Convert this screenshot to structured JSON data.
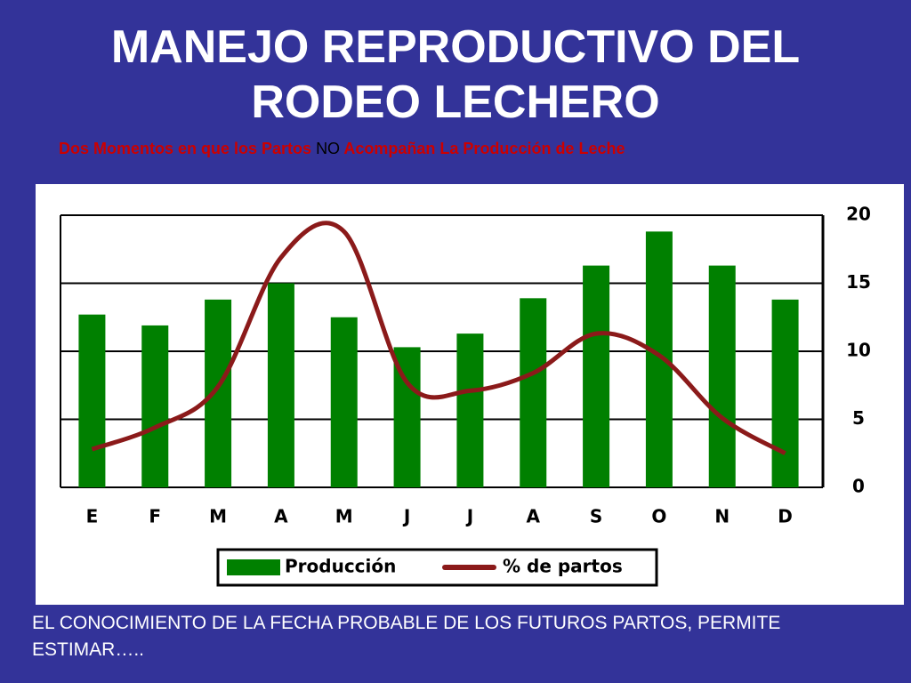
{
  "title": "MANEJO REPRODUCTIVO DEL RODEO LECHERO",
  "subtitle": {
    "part1": "Dos Momentos en que los Partos",
    "part2": "NO",
    "part3": "Acompañan La Producción de Leche"
  },
  "footer": "EL CONOCIMIENTO DE LA FECHA  PROBABLE DE LOS FUTUROS PARTOS, PERMITE ESTIMAR…..",
  "chart_data": {
    "type": "bar_line",
    "categories": [
      "E",
      "F",
      "M",
      "A",
      "M",
      "J",
      "J",
      "A",
      "S",
      "O",
      "N",
      "D"
    ],
    "series": [
      {
        "name": "Producción",
        "type": "bar",
        "color": "#008000",
        "values": [
          12.7,
          11.9,
          13.8,
          15.0,
          12.5,
          10.3,
          11.3,
          13.9,
          16.3,
          18.8,
          16.3,
          13.8
        ]
      },
      {
        "name": "% de partos",
        "type": "line",
        "color": "#8b1a1a",
        "values": [
          2.8,
          4.4,
          7.4,
          16.9,
          18.8,
          7.7,
          7.1,
          8.4,
          11.3,
          9.7,
          5.1,
          2.5
        ]
      }
    ],
    "ylim": [
      0,
      20
    ],
    "yticks": [
      0,
      5,
      10,
      15,
      20
    ],
    "grid": true,
    "y_axis_side": "right",
    "legend": "bottom"
  }
}
